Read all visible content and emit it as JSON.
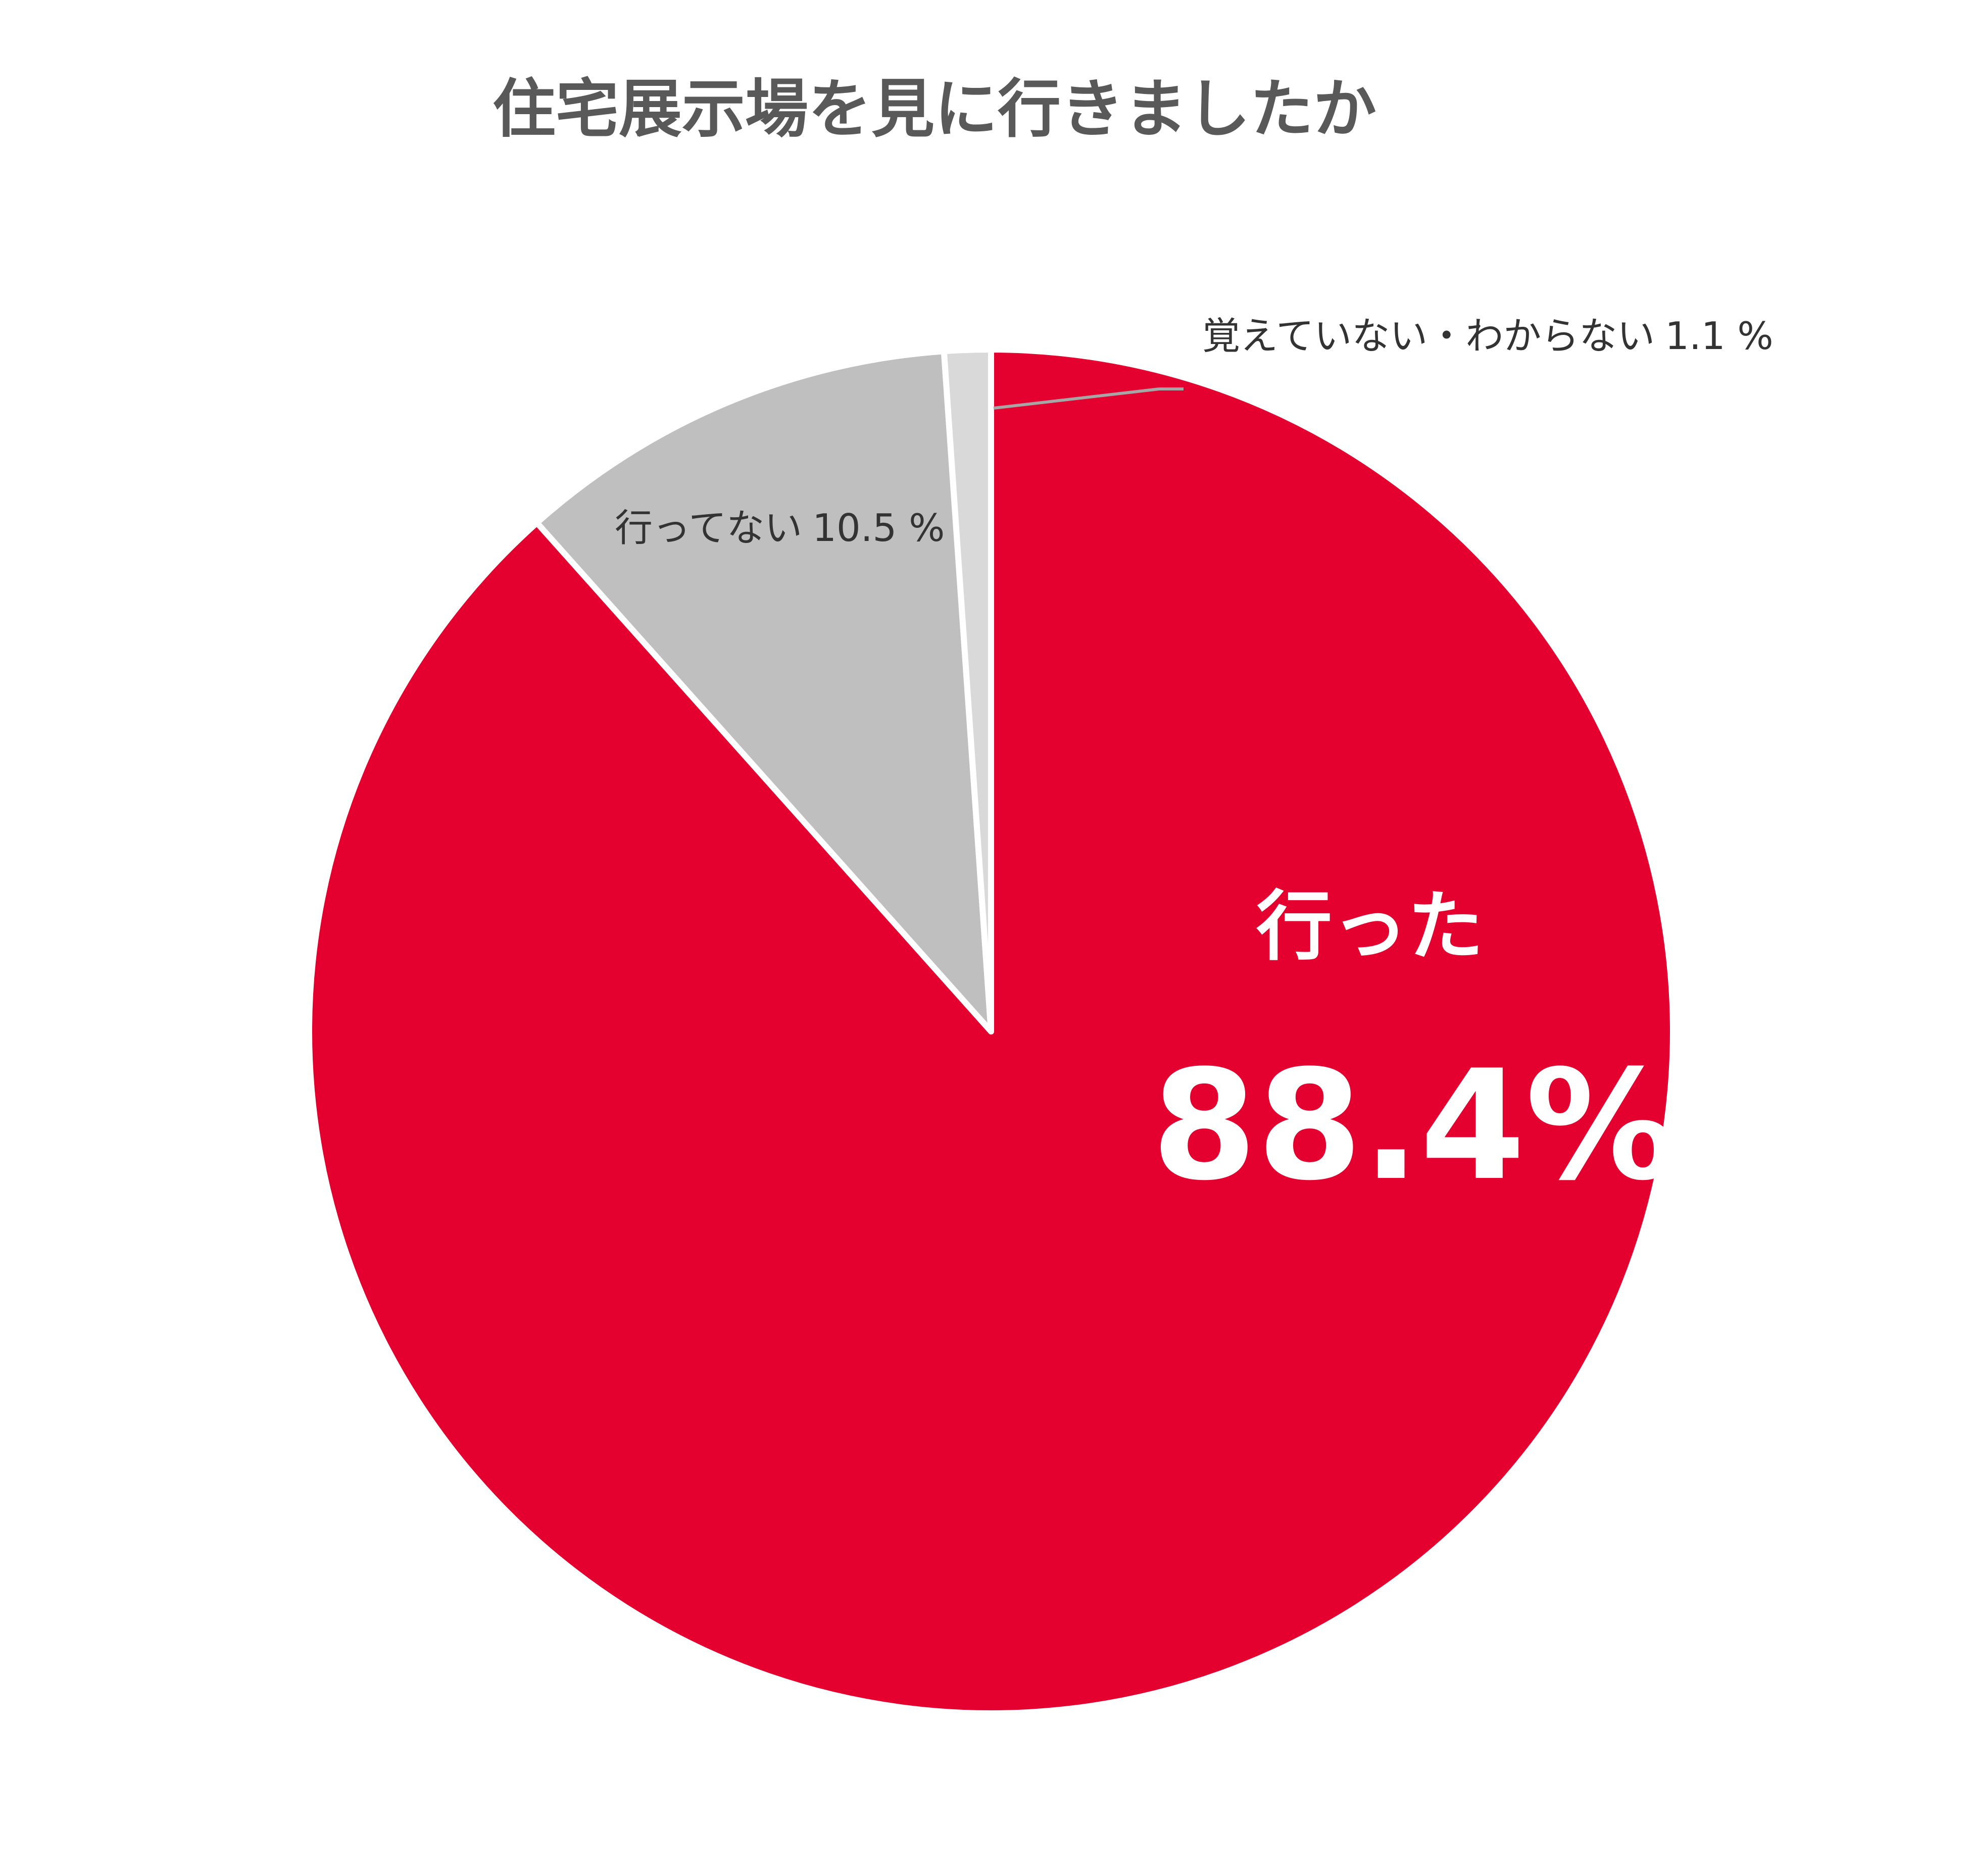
{
  "chart_data": {
    "type": "pie",
    "title": "住宅展示場を見に行きましたか",
    "categories": [
      "行った",
      "行ってない",
      "覚えていない・わからない"
    ],
    "values": [
      88.4,
      10.5,
      1.1
    ],
    "value_labels": [
      "88.4%",
      "10.5 %",
      "1.1 %"
    ],
    "colors": [
      "#e4002f",
      "#bfbfbf",
      "#d9d9d9"
    ]
  }
}
